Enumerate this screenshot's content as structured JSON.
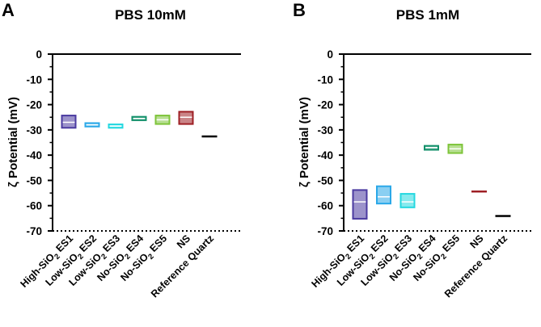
{
  "chart_data": [
    {
      "panel_letter": "A",
      "type": "floating-bar",
      "title": "PBS 10mM",
      "ylabel": "ζ Potential (mV)",
      "ylim": [
        -70,
        0
      ],
      "yticks": [
        0,
        -10,
        -20,
        -30,
        -40,
        -50,
        -60,
        -70
      ],
      "ytick_labels": [
        "0",
        "-10",
        "-20",
        "-30",
        "-40",
        "-50",
        "-60",
        "-70"
      ],
      "categories": [
        {
          "base": "High-SiO",
          "sub": "2",
          "rest": " ES1"
        },
        {
          "base": "Low-SiO",
          "sub": "2",
          "rest": " ES2"
        },
        {
          "base": "Low-SiO",
          "sub": "2",
          "rest": " ES3"
        },
        {
          "base": "No-SiO",
          "sub": "2",
          "rest": " ES4"
        },
        {
          "base": "No-SiO",
          "sub": "2",
          "rest": " ES5"
        },
        {
          "base": "NS",
          "sub": "",
          "rest": ""
        },
        {
          "base": "Reference Quartz",
          "sub": "",
          "rest": ""
        }
      ],
      "series": [
        {
          "min": -29.5,
          "max": -24.0,
          "mean": -27.0,
          "color": "#4a3aa0"
        },
        {
          "min": -29.0,
          "max": -27.0,
          "mean": -28.0,
          "color": "#2aa8e8"
        },
        {
          "min": -29.5,
          "max": -27.5,
          "mean": -28.5,
          "color": "#25d8e0"
        },
        {
          "min": -26.5,
          "max": -24.5,
          "mean": -25.5,
          "color": "#12906a"
        },
        {
          "min": -28.0,
          "max": -24.0,
          "mean": -26.0,
          "color": "#7ec43a"
        },
        {
          "min": -28.0,
          "max": -22.5,
          "mean": -25.0,
          "color": "#9e1f24"
        },
        {
          "min": -33.0,
          "max": -32.2,
          "mean": -32.6,
          "color": "#000000"
        }
      ]
    },
    {
      "panel_letter": "B",
      "type": "floating-bar",
      "title": "PBS 1mM",
      "ylabel": "ζ Potential (mV)",
      "ylim": [
        -70,
        0
      ],
      "yticks": [
        0,
        -10,
        -20,
        -30,
        -40,
        -50,
        -60,
        -70
      ],
      "ytick_labels": [
        "0",
        "-10",
        "-20",
        "-30",
        "-40",
        "-50",
        "-60",
        "-70"
      ],
      "categories": [
        {
          "base": "High-SiO",
          "sub": "2",
          "rest": " ES1"
        },
        {
          "base": "Low-SiO",
          "sub": "2",
          "rest": " ES2"
        },
        {
          "base": "Low-SiO",
          "sub": "2",
          "rest": " ES3"
        },
        {
          "base": "No-SiO",
          "sub": "2",
          "rest": " ES4"
        },
        {
          "base": "No-SiO",
          "sub": "2",
          "rest": " ES5"
        },
        {
          "base": "NS",
          "sub": "",
          "rest": ""
        },
        {
          "base": "Reference Quartz",
          "sub": "",
          "rest": ""
        }
      ],
      "series": [
        {
          "min": -65.5,
          "max": -53.5,
          "mean": -58.5,
          "color": "#4a3aa0"
        },
        {
          "min": -59.5,
          "max": -52.0,
          "mean": -56.5,
          "color": "#2aa8e8"
        },
        {
          "min": -61.0,
          "max": -55.0,
          "mean": -58.5,
          "color": "#25d8e0"
        },
        {
          "min": -38.2,
          "max": -36.0,
          "mean": -37.0,
          "color": "#12906a"
        },
        {
          "min": -39.5,
          "max": -35.5,
          "mean": -37.5,
          "color": "#7ec43a"
        },
        {
          "min": -54.6,
          "max": -54.0,
          "mean": -54.3,
          "color": "#9e1f24"
        },
        {
          "min": -64.5,
          "max": -63.7,
          "mean": -64.1,
          "color": "#000000"
        }
      ]
    }
  ]
}
